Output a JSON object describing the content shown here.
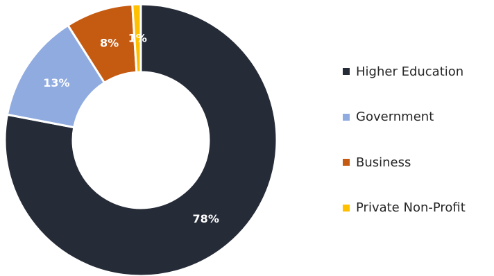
{
  "chart_data": {
    "type": "pie",
    "variant": "donut",
    "title": "",
    "categories": [
      "Higher Education",
      "Government",
      "Business",
      "Private Non-Profit"
    ],
    "values": [
      78,
      13,
      8,
      1
    ],
    "value_labels": [
      "78%",
      "13%",
      "8%",
      "1%"
    ],
    "colors": [
      "#252b37",
      "#90abe0",
      "#c55a11",
      "#ffc000"
    ],
    "legend_position": "right"
  }
}
